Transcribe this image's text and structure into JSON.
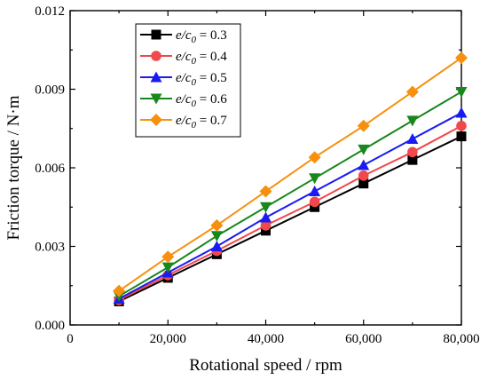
{
  "chart_data": {
    "type": "line",
    "xlabel": "Rotational speed / rpm",
    "ylabel": "Friction torque / N·m",
    "xlim": [
      0,
      80000
    ],
    "ylim": [
      0,
      0.012
    ],
    "xticks": [
      0,
      20000,
      40000,
      60000,
      80000
    ],
    "xtick_labels": [
      "0",
      "20,000",
      "40,000",
      "60,000",
      "80,000"
    ],
    "yticks": [
      0,
      0.003,
      0.006,
      0.009,
      0.012
    ],
    "ytick_labels": [
      "0.000",
      "0.003",
      "0.006",
      "0.009",
      "0.012"
    ],
    "legend_position": "top-left",
    "grid": false,
    "x": [
      10000,
      20000,
      30000,
      40000,
      50000,
      60000,
      70000,
      80000
    ],
    "series": [
      {
        "legend_lhs": "e/c",
        "legend_sub": "0",
        "legend_rhs": " = 0.3",
        "color": "#000000",
        "marker": "square",
        "values": [
          0.0009,
          0.0018,
          0.0027,
          0.0036,
          0.0045,
          0.0054,
          0.0063,
          0.0072
        ]
      },
      {
        "legend_lhs": "e/c",
        "legend_sub": "0",
        "legend_rhs": " = 0.4",
        "color": "#f0484b",
        "marker": "circle",
        "values": [
          0.00095,
          0.0019,
          0.00283,
          0.0038,
          0.0047,
          0.0057,
          0.0066,
          0.0076
        ]
      },
      {
        "legend_lhs": "e/c",
        "legend_sub": "0",
        "legend_rhs": " = 0.5",
        "color": "#1a1af2",
        "marker": "triangle-up",
        "values": [
          0.001,
          0.002,
          0.003,
          0.0041,
          0.0051,
          0.0061,
          0.0071,
          0.0081
        ]
      },
      {
        "legend_lhs": "e/c",
        "legend_sub": "0",
        "legend_rhs": " = 0.6",
        "color": "#18871c",
        "marker": "triangle-down",
        "values": [
          0.0011,
          0.0022,
          0.0034,
          0.0045,
          0.0056,
          0.0067,
          0.0078,
          0.0089
        ]
      },
      {
        "legend_lhs": "e/c",
        "legend_sub": "0",
        "legend_rhs": " = 0.7",
        "color": "#f7900f",
        "marker": "diamond",
        "values": [
          0.0013,
          0.0026,
          0.0038,
          0.0051,
          0.0064,
          0.0076,
          0.0089,
          0.0102
        ]
      }
    ]
  }
}
